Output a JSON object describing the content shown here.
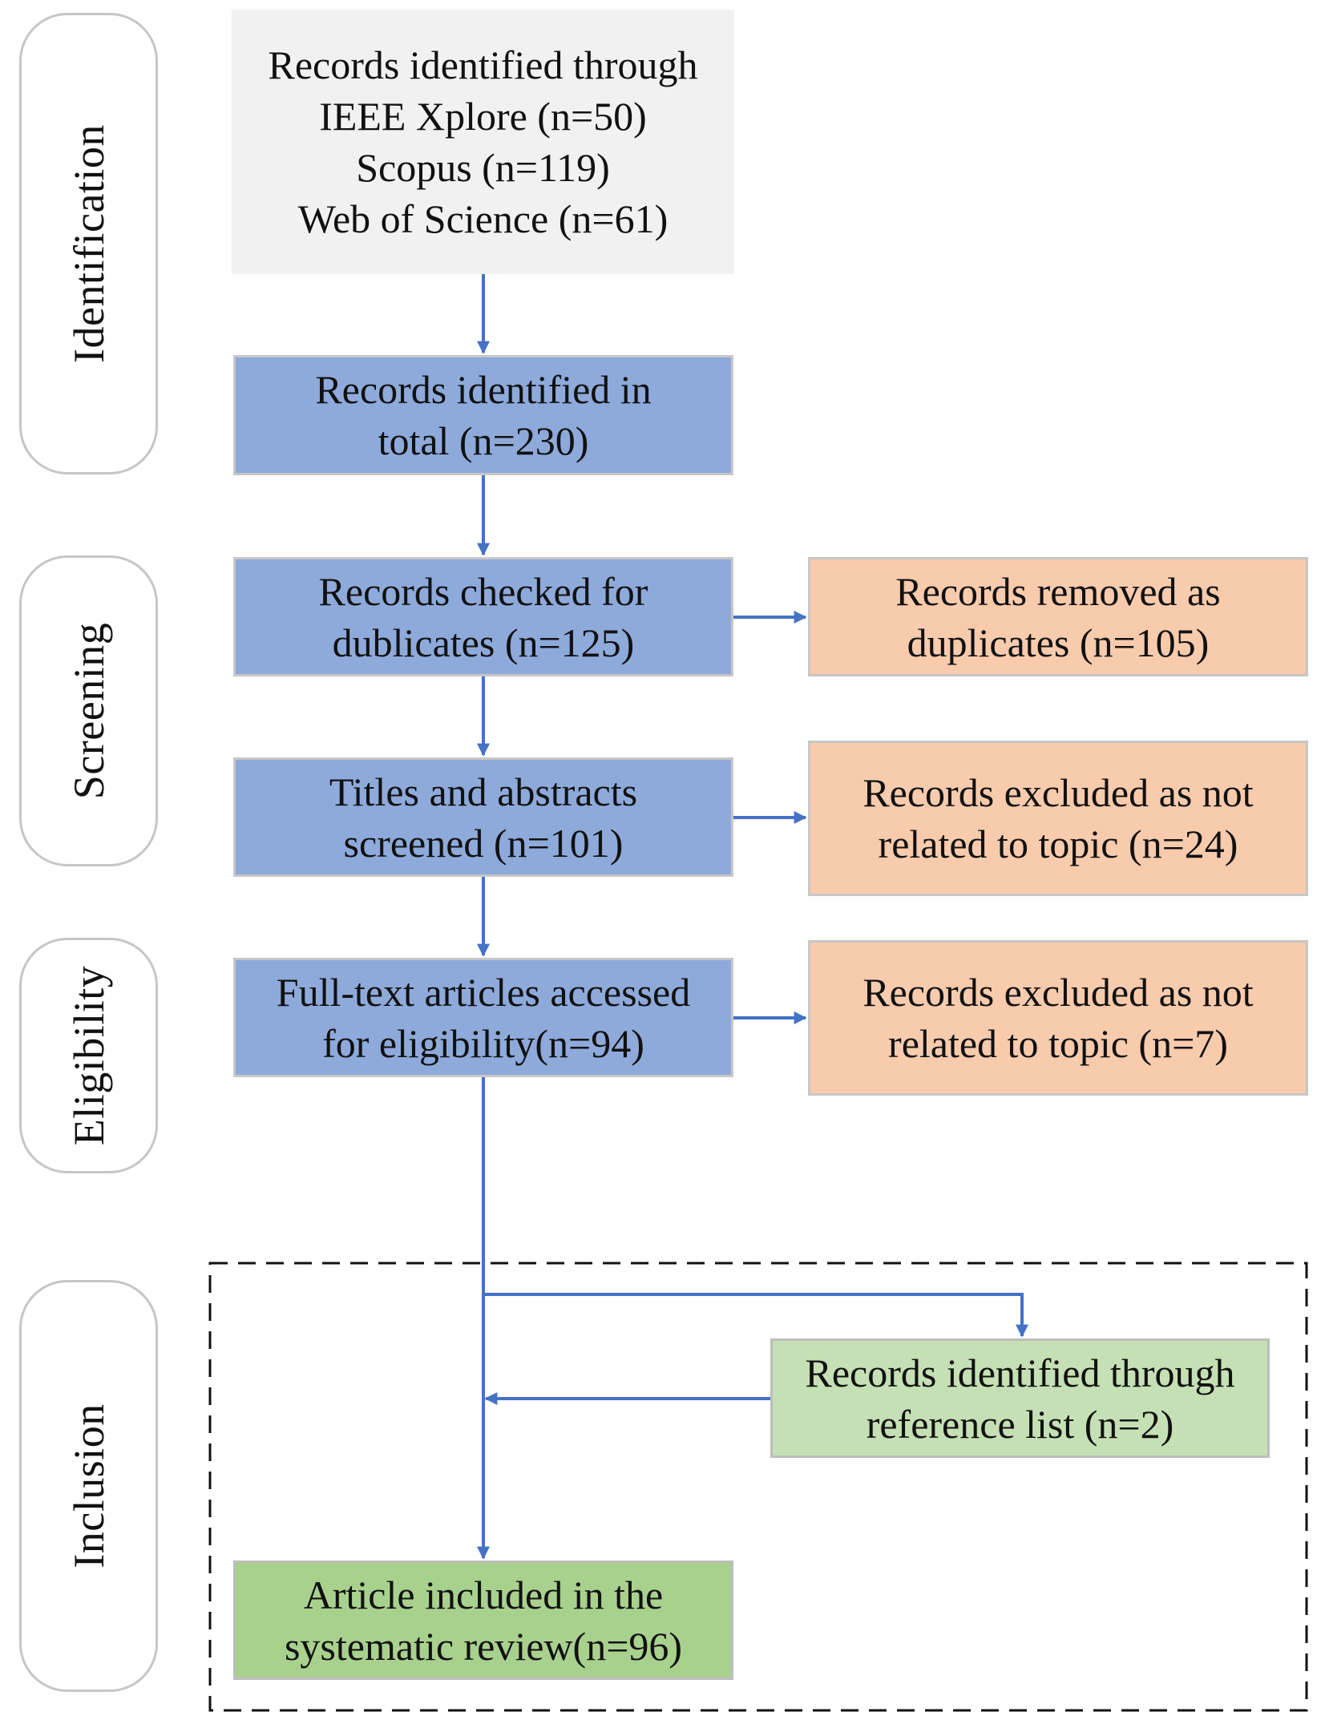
{
  "colors": {
    "arrow": "#4472c4",
    "stage_border": "#c6c6c6",
    "source_box": "#f1f1f1",
    "process_box": "#8eaadb",
    "excluded_box": "#f8cbad",
    "reference_box": "#c5e0b4",
    "included_box": "#a9d18e",
    "dashed_region": "#111111"
  },
  "stages": {
    "identification": "Identification",
    "screening": "Screening",
    "eligibility": "Eligibility",
    "inclusion": "Inclusion"
  },
  "boxes": {
    "sources": "Records identified through\nIEEE Xplore (n=50)\nScopus (n=119)\nWeb of Science (n=61)",
    "total": "Records identified in\ntotal (n=230)",
    "duplicates_check": "Records checked for\ndublicates (n=125)",
    "duplicates_removed": "Records removed as\nduplicates (n=105)",
    "titles_screened": "Titles and abstracts\nscreened (n=101)",
    "excluded_topic_1": "Records excluded as not\nrelated to topic (n=24)",
    "full_text": "Full-text articles accessed\nfor eligibility(n=94)",
    "excluded_topic_2": "Records excluded as not\nrelated to topic (n=7)",
    "reference_list": "Records identified through\nreference list (n=2)",
    "included": "Article included in the\nsystematic review(n=96)"
  }
}
